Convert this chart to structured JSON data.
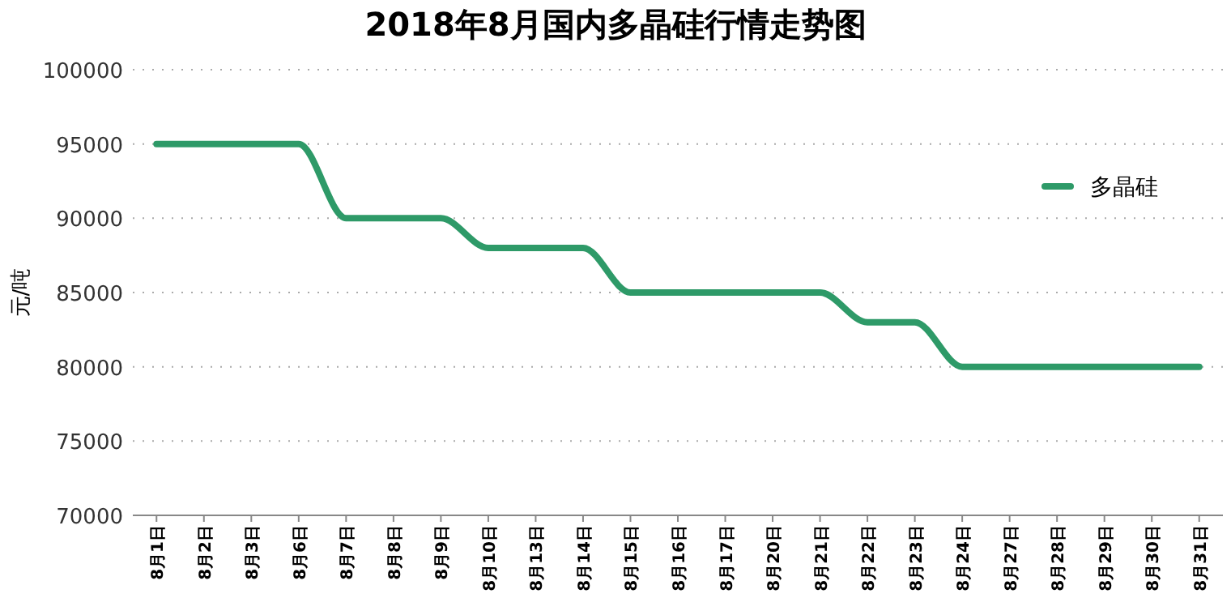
{
  "chart_data": {
    "type": "line",
    "title": "2018年8月国内多晶硅行情走势图",
    "ylabel": "元/吨",
    "categories": [
      "8月1日",
      "8月2日",
      "8月3日",
      "8月6日",
      "8月7日",
      "8月8日",
      "8月9日",
      "8月10日",
      "8月13日",
      "8月14日",
      "8月15日",
      "8月16日",
      "8月17日",
      "8月20日",
      "8月21日",
      "8月22日",
      "8月23日",
      "8月24日",
      "8月27日",
      "8月28日",
      "8月29日",
      "8月30日",
      "8月31日"
    ],
    "series": [
      {
        "name": "多晶硅",
        "color": "#2e9a68",
        "values": [
          95000,
          95000,
          95000,
          95000,
          90000,
          90000,
          90000,
          88000,
          88000,
          88000,
          85000,
          85000,
          85000,
          85000,
          85000,
          83000,
          83000,
          80000,
          80000,
          80000,
          80000,
          80000,
          80000
        ]
      }
    ],
    "ylim": [
      70000,
      100000
    ],
    "yticks": [
      70000,
      75000,
      80000,
      85000,
      90000,
      95000,
      100000
    ],
    "grid": "y",
    "legend": "top right",
    "marker": "none",
    "line_style": "solid"
  }
}
